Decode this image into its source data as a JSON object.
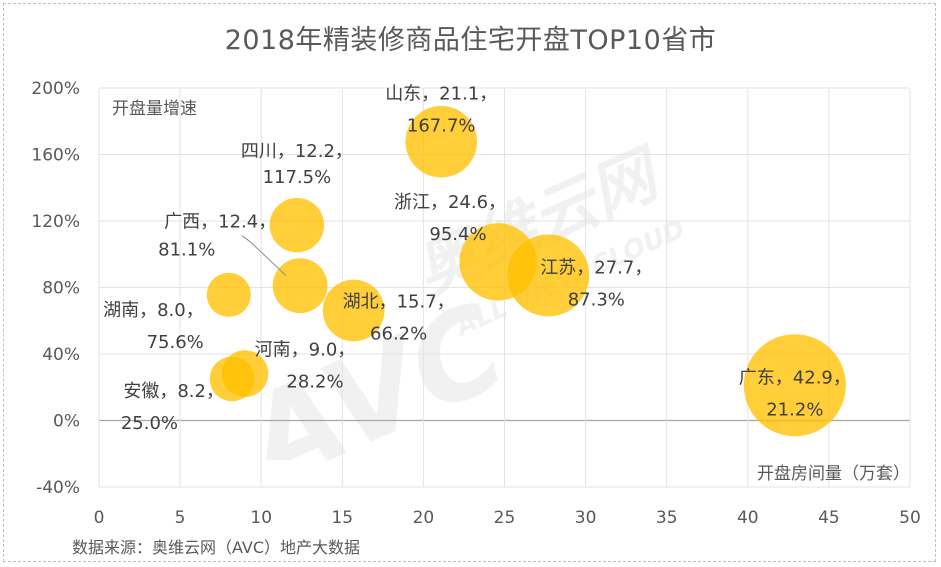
{
  "title": "2018年精装修商品住宅开盘TOP10省市",
  "source": "数据来源：奥维云网（AVC）地产大数据",
  "watermark": {
    "big": "AVC",
    "cn": "奥维云网",
    "en": "ALL VIEW CLOUD"
  },
  "chart_data": {
    "type": "scatter",
    "title": "2018年精装修商品住宅开盘TOP10省市",
    "xlabel": "开盘房间量（万套）",
    "ylabel": "开盘量增速",
    "xlim": [
      0,
      50
    ],
    "ylim": [
      -40,
      200
    ],
    "xticks": [
      "0",
      "5",
      "10",
      "15",
      "20",
      "25",
      "30",
      "35",
      "40",
      "45",
      "50"
    ],
    "yticks": [
      "-40%",
      "0%",
      "40%",
      "80%",
      "120%",
      "160%",
      "200%"
    ],
    "grid": true,
    "bubble_color": "#FFC000",
    "points": [
      {
        "name": "山东",
        "x": 21.1,
        "y": 167.7,
        "label": "山东，21.1，",
        "label2": "167.7%"
      },
      {
        "name": "四川",
        "x": 12.2,
        "y": 117.5,
        "label": "四川，12.2，",
        "label2": "117.5%"
      },
      {
        "name": "广西",
        "x": 12.4,
        "y": 81.1,
        "label": "广西，12.4，",
        "label2": "81.1%"
      },
      {
        "name": "浙江",
        "x": 24.6,
        "y": 95.4,
        "label": "浙江，24.6，",
        "label2": "95.4%"
      },
      {
        "name": "江苏",
        "x": 27.7,
        "y": 87.3,
        "label": "江苏，27.7，",
        "label2": "87.3%"
      },
      {
        "name": "湖南",
        "x": 8.0,
        "y": 75.6,
        "label": "湖南，8.0，",
        "label2": "75.6%"
      },
      {
        "name": "湖北",
        "x": 15.7,
        "y": 66.2,
        "label": "湖北，15.7，",
        "label2": "66.2%"
      },
      {
        "name": "河南",
        "x": 9.0,
        "y": 28.2,
        "label": "河南，9.0，",
        "label2": "28.2%"
      },
      {
        "name": "安徽",
        "x": 8.2,
        "y": 25.0,
        "label": "安徽，8.2，",
        "label2": "25.0%"
      },
      {
        "name": "广东",
        "x": 42.9,
        "y": 21.2,
        "label": "广东，42.9，",
        "label2": "21.2%"
      }
    ]
  }
}
